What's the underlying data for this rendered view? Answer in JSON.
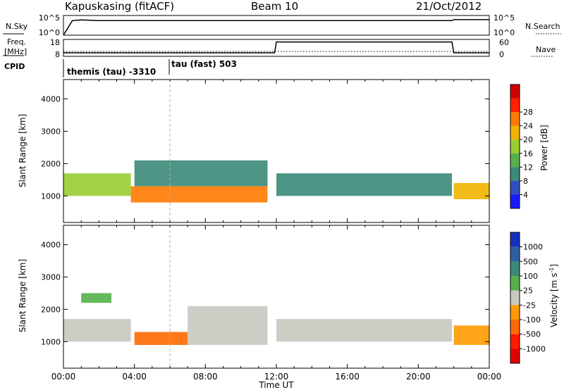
{
  "header": {
    "station": "Kapuskasing (fitACF)",
    "beam": "Beam 10",
    "date": "21/Oct/2012"
  },
  "noise_panel": {
    "left_label": "N.Sky",
    "right_label": "N.Search",
    "left_ticks": [
      "10^5",
      "10^0"
    ],
    "right_ticks": [
      "10^5",
      "10^0"
    ]
  },
  "freq_panel": {
    "left_label_line1": "Freq.",
    "left_label_line2": "[MHz]",
    "right_label": "Nave",
    "left_ticks": [
      "18",
      "8"
    ],
    "right_ticks": [
      "60",
      "0"
    ]
  },
  "cpid": {
    "label": "CPID",
    "programs": [
      "themis (tau) -3310",
      "tau (fast) 503"
    ]
  },
  "time_axis": {
    "label": "Time UT",
    "ticks": [
      "00:00",
      "04:00",
      "08:00",
      "12:00",
      "16:00",
      "20:00",
      "00:00"
    ]
  },
  "range_axis": {
    "label": "Slant Range [km]",
    "ticks": [
      "1000",
      "2000",
      "3000",
      "4000"
    ]
  },
  "power_colorbar": {
    "label": "Power [dB]",
    "ticks": [
      "4",
      "8",
      "12",
      "16",
      "20",
      "24",
      "28"
    ],
    "colors": [
      "#1a1aff",
      "#2e4fbf",
      "#3c8a78",
      "#55b04a",
      "#9acd32",
      "#f0b400",
      "#ff7a00",
      "#ff2000",
      "#d00000"
    ]
  },
  "velocity_colorbar": {
    "label": "Velocity [m s",
    "label_exponent": "-1",
    "label_close": "]",
    "ticks": [
      "1000",
      "500",
      "100",
      "25",
      "-25",
      "-100",
      "-500",
      "-1000"
    ],
    "colors": [
      "#1530c0",
      "#2e60a0",
      "#3c8a78",
      "#55b04a",
      "#c8c8c0",
      "#ff9a00",
      "#ff6a00",
      "#ff1a00",
      "#e00000"
    ]
  },
  "colors": {
    "ground_scatter": "#c8c8c0",
    "axis": "#000000",
    "reference_line": "#b0b0b0"
  },
  "chart_data": [
    {
      "type": "line",
      "title": "N.Sky",
      "x": [
        0,
        0.5,
        1,
        2,
        4,
        6,
        8,
        10,
        12,
        14,
        16,
        18,
        20,
        21.9,
        22,
        24
      ],
      "y_log10": [
        0,
        3.7,
        3.9,
        3.7,
        3.7,
        3.7,
        3.7,
        3.7,
        3.7,
        3.7,
        3.7,
        3.7,
        3.7,
        3.7,
        3.95,
        3.95
      ],
      "xlim": [
        0,
        24
      ],
      "ylim_log10": [
        0,
        5
      ]
    },
    {
      "type": "line",
      "title": "Freq. [MHz]",
      "x": [
        0,
        11.9,
        12,
        21.9,
        22,
        24
      ],
      "y": [
        10.1,
        10.1,
        16.5,
        16.5,
        10.1,
        10.1
      ],
      "xlim": [
        0,
        24
      ],
      "ylim": [
        8,
        18
      ]
    },
    {
      "type": "heatmap",
      "title": "Power [dB]",
      "xlabel": "Time UT",
      "ylabel": "Slant Range [km]",
      "xlim": [
        0,
        24
      ],
      "ylim": [
        180,
        4600
      ],
      "bands": [
        {
          "t0": 0.0,
          "t1": 3.8,
          "r0": 1000,
          "r1": 1700,
          "power": 16
        },
        {
          "t0": 3.8,
          "t1": 11.5,
          "r0": 800,
          "r1": 1300,
          "power": 26
        },
        {
          "t0": 4.0,
          "t1": 11.5,
          "r0": 1300,
          "r1": 2100,
          "power": 8
        },
        {
          "t0": 12.0,
          "t1": 21.9,
          "r0": 1000,
          "r1": 1700,
          "power": 10
        },
        {
          "t0": 22.0,
          "t1": 24.0,
          "r0": 900,
          "r1": 1400,
          "power": 22
        }
      ]
    },
    {
      "type": "heatmap",
      "title": "Velocity [m s-1]",
      "xlabel": "Time UT",
      "ylabel": "Slant Range [km]",
      "xlim": [
        0,
        24
      ],
      "ylim": [
        180,
        4600
      ],
      "bands": [
        {
          "t0": 0.0,
          "t1": 3.8,
          "r0": 1000,
          "r1": 1700,
          "velocity": 0
        },
        {
          "t0": 4.0,
          "t1": 7.0,
          "r0": 900,
          "r1": 1300,
          "velocity": -150
        },
        {
          "t0": 7.0,
          "t1": 11.5,
          "r0": 900,
          "r1": 2100,
          "velocity": 0
        },
        {
          "t0": 12.0,
          "t1": 21.9,
          "r0": 1000,
          "r1": 1700,
          "velocity": 0
        },
        {
          "t0": 1.0,
          "t1": 2.7,
          "r0": 2200,
          "r1": 2500,
          "velocity": 80
        },
        {
          "t0": 22.0,
          "t1": 24.0,
          "r0": 900,
          "r1": 1500,
          "velocity": -60
        }
      ]
    }
  ]
}
